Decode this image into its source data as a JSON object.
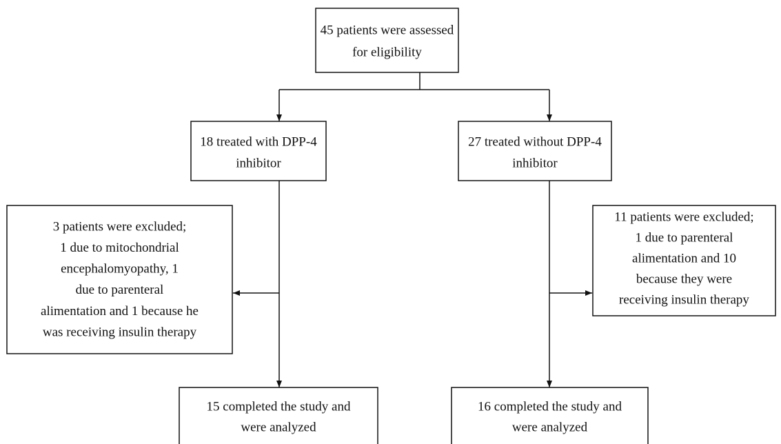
{
  "nodes": [
    {
      "lines": [
        "45 patients were assessed",
        "for eligibility"
      ]
    },
    {
      "lines": [
        "18 treated with DPP-4",
        "inhibitor"
      ]
    },
    {
      "lines": [
        "27 treated without DPP-4",
        "inhibitor"
      ]
    },
    {
      "lines": [
        "3 patients were excluded;",
        "1 due to mitochondrial",
        "encephalomyopathy, 1",
        "due to parenteral",
        "alimentation and 1 because he",
        "was receiving insulin therapy"
      ]
    },
    {
      "lines": [
        "11 patients were excluded;",
        "1 due to parenteral",
        "alimentation and 10",
        "because they were",
        "receiving insulin therapy"
      ]
    },
    {
      "lines": [
        "15 completed the study and",
        "were analyzed"
      ]
    },
    {
      "lines": [
        "16 completed the study and",
        "were analyzed"
      ]
    }
  ]
}
